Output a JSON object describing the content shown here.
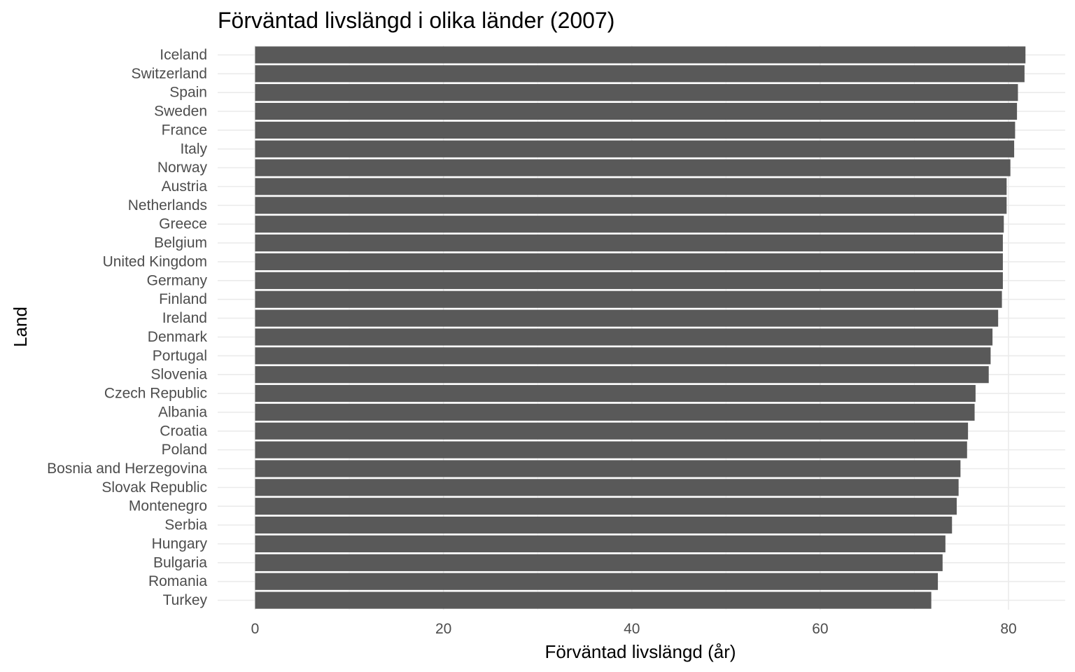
{
  "chart_data": {
    "type": "bar",
    "orientation": "horizontal",
    "title": "Förväntad livslängd i olika länder (2007)",
    "xlabel": "Förväntad livslängd (år)",
    "ylabel": "Land",
    "xlim": [
      0,
      85
    ],
    "xticks": [
      0,
      20,
      40,
      60,
      80
    ],
    "grid": true,
    "bar_color": "#595959",
    "categories": [
      "Iceland",
      "Switzerland",
      "Spain",
      "Sweden",
      "France",
      "Italy",
      "Norway",
      "Austria",
      "Netherlands",
      "Greece",
      "Belgium",
      "United Kingdom",
      "Germany",
      "Finland",
      "Ireland",
      "Denmark",
      "Portugal",
      "Slovenia",
      "Czech Republic",
      "Albania",
      "Croatia",
      "Poland",
      "Bosnia and Herzegovina",
      "Slovak Republic",
      "Montenegro",
      "Serbia",
      "Hungary",
      "Bulgaria",
      "Romania",
      "Turkey"
    ],
    "values": [
      81.8,
      81.7,
      81.0,
      80.9,
      80.7,
      80.6,
      80.2,
      79.8,
      79.8,
      79.5,
      79.4,
      79.4,
      79.4,
      79.3,
      78.9,
      78.3,
      78.1,
      77.9,
      76.5,
      76.4,
      75.7,
      75.6,
      74.9,
      74.7,
      74.5,
      74.0,
      73.3,
      73.0,
      72.5,
      71.8
    ]
  }
}
